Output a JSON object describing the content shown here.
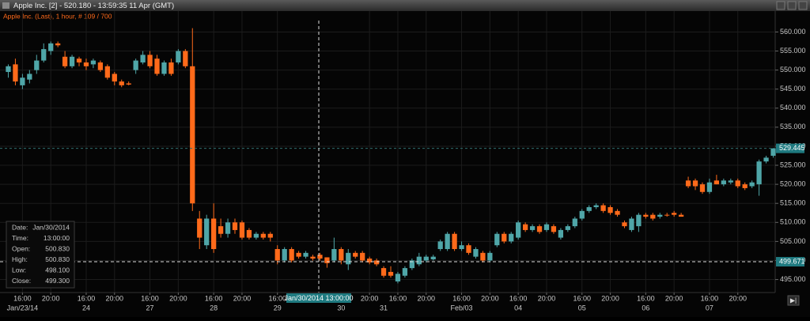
{
  "chart_data": {
    "type": "candlestick",
    "title": "Apple Inc.  [2] - 520.180 - 13:59:35  11 Apr (GMT)",
    "subtitle": "Apple Inc.  (Last), 1 hour, # 109 / 700",
    "up_color": "#4fa6a8",
    "down_color": "#ff6a1a",
    "grid": true,
    "ylim": [
      492,
      563
    ],
    "yticks": [
      {
        "value": 495,
        "label": "495.000"
      },
      {
        "value": 500,
        "label": "500.000"
      },
      {
        "value": 505,
        "label": "505.000"
      },
      {
        "value": 510,
        "label": "510.000"
      },
      {
        "value": 515,
        "label": "515.000"
      },
      {
        "value": 520,
        "label": "520.000"
      },
      {
        "value": 525,
        "label": "525.000"
      },
      {
        "value": 530,
        "label": "530.000"
      },
      {
        "value": 535,
        "label": "535.000"
      },
      {
        "value": 540,
        "label": "540.000"
      },
      {
        "value": 545,
        "label": "545.000"
      },
      {
        "value": 550,
        "label": "550.000"
      },
      {
        "value": 555,
        "label": "555.000"
      },
      {
        "value": 560,
        "label": "560.000"
      }
    ],
    "xlim": [
      -0.5,
      108.5
    ],
    "xticks": [
      {
        "value": 2,
        "label": "16:00"
      },
      {
        "value": 6,
        "label": "20:00"
      },
      {
        "value": 11,
        "label": "16:00"
      },
      {
        "value": 15,
        "label": "20:00"
      },
      {
        "value": 20,
        "label": "16:00"
      },
      {
        "value": 24,
        "label": "20:00"
      },
      {
        "value": 29,
        "label": "16:00"
      },
      {
        "value": 33,
        "label": "20:00"
      },
      {
        "value": 38,
        "label": "16:00"
      },
      {
        "value": 51,
        "label": "20:00"
      },
      {
        "value": 55,
        "label": "16:00"
      },
      {
        "value": 59,
        "label": "20:00"
      },
      {
        "value": 64,
        "label": "16:00"
      },
      {
        "value": 68,
        "label": "20:00"
      },
      {
        "value": 72,
        "label": "16:00"
      },
      {
        "value": 76,
        "label": "20:00"
      },
      {
        "value": 81,
        "label": "16:00"
      },
      {
        "value": 85,
        "label": "20:00"
      },
      {
        "value": 90,
        "label": "16:00"
      },
      {
        "value": 94,
        "label": "20:00"
      },
      {
        "value": 99,
        "label": "16:00"
      },
      {
        "value": 103,
        "label": "20:00"
      }
    ],
    "date_ticks": [
      {
        "value": 2,
        "label": "Jan/23/14"
      },
      {
        "value": 11,
        "label": "24"
      },
      {
        "value": 20,
        "label": "27"
      },
      {
        "value": 29,
        "label": "28"
      },
      {
        "value": 38,
        "label": "29"
      },
      {
        "value": 47,
        "label": "30"
      },
      {
        "value": 53,
        "label": "31"
      },
      {
        "value": 64,
        "label": "Feb/03"
      },
      {
        "value": 72,
        "label": "04"
      },
      {
        "value": 81,
        "label": "05"
      },
      {
        "value": 90,
        "label": "06"
      },
      {
        "value": 99,
        "label": "07"
      }
    ],
    "ohlc": [
      [
        549.5,
        551.5,
        548,
        551
      ],
      [
        551.5,
        553,
        546,
        547
      ],
      [
        546,
        549,
        545,
        548
      ],
      [
        547.5,
        550,
        546.5,
        549
      ],
      [
        550,
        554,
        549,
        552.5
      ],
      [
        552.5,
        557,
        552,
        555.5
      ],
      [
        555,
        557.5,
        554,
        557
      ],
      [
        557,
        557.5,
        556,
        556.5
      ],
      [
        553.5,
        555,
        550.5,
        551
      ],
      [
        551,
        554,
        550.5,
        553.5
      ],
      [
        553,
        553.5,
        551,
        552
      ],
      [
        552,
        553,
        550,
        551
      ],
      [
        551.5,
        553,
        550.5,
        552.5
      ],
      [
        552,
        552.5,
        549.5,
        550
      ],
      [
        551,
        551.5,
        547.5,
        548
      ],
      [
        549,
        549.5,
        546,
        547
      ],
      [
        547,
        547.5,
        545.5,
        546
      ],
      [
        546.5,
        547,
        546,
        546.2
      ],
      [
        550,
        553,
        549,
        552.5
      ],
      [
        552,
        555,
        551.5,
        554
      ],
      [
        554,
        555,
        550.5,
        551
      ],
      [
        553,
        554,
        548.5,
        549
      ],
      [
        549,
        552.5,
        548.5,
        552
      ],
      [
        552,
        553,
        548.5,
        549
      ],
      [
        552,
        555.5,
        551.5,
        555
      ],
      [
        555,
        555.5,
        550.5,
        551
      ],
      [
        551,
        561,
        513,
        515
      ],
      [
        511,
        513,
        503,
        506
      ],
      [
        504,
        512,
        503,
        511
      ],
      [
        511,
        515,
        502,
        503
      ],
      [
        509,
        511,
        506,
        507
      ],
      [
        507,
        511,
        506,
        510
      ],
      [
        510,
        511,
        507,
        508
      ],
      [
        510,
        510.5,
        505.5,
        506
      ],
      [
        508,
        508.5,
        505.5,
        506
      ],
      [
        506,
        507.5,
        505.5,
        507
      ],
      [
        507,
        507.5,
        505.5,
        506
      ],
      [
        507,
        507.5,
        505,
        506
      ],
      [
        503,
        504,
        499,
        500
      ],
      [
        500,
        503.5,
        499.5,
        503
      ],
      [
        503,
        503.5,
        499.5,
        500
      ],
      [
        502,
        502.5,
        500.5,
        501
      ],
      [
        501,
        502.5,
        500.5,
        502
      ],
      [
        501,
        501.5,
        500,
        500.5
      ],
      [
        501.5,
        502,
        500,
        500.5
      ],
      [
        500.83,
        500.83,
        498.1,
        499.3
      ],
      [
        500,
        506,
        499.5,
        503
      ],
      [
        503,
        503.5,
        499,
        500
      ],
      [
        499,
        503,
        497.5,
        502
      ],
      [
        502,
        502.5,
        500.5,
        501
      ],
      [
        502,
        502.5,
        499.5,
        500
      ],
      [
        500.5,
        501,
        499,
        499.5
      ],
      [
        500,
        500.5,
        498.5,
        499
      ],
      [
        498,
        498.5,
        495.5,
        496
      ],
      [
        497,
        498.5,
        495.5,
        496
      ],
      [
        494.5,
        497,
        494,
        496.5
      ],
      [
        496,
        498.5,
        495.5,
        498
      ],
      [
        498,
        500.5,
        497.5,
        500
      ],
      [
        499,
        502,
        498.5,
        501
      ],
      [
        500,
        501.5,
        499.5,
        501
      ],
      [
        500.3,
        501.5,
        500,
        501
      ],
      [
        503,
        505.5,
        502.5,
        505
      ],
      [
        503,
        507.5,
        502.5,
        507
      ],
      [
        507,
        507.5,
        502.5,
        503
      ],
      [
        503,
        505,
        502.5,
        504
      ],
      [
        504,
        504.5,
        501.5,
        502
      ],
      [
        501,
        503.5,
        500.5,
        503
      ],
      [
        502,
        502.5,
        499.5,
        500
      ],
      [
        500,
        502.5,
        499.5,
        502
      ],
      [
        504,
        507.5,
        503.5,
        507
      ],
      [
        507,
        507.5,
        504.5,
        505
      ],
      [
        505,
        507.5,
        504.5,
        507
      ],
      [
        506,
        510.5,
        505.5,
        510
      ],
      [
        509.5,
        510,
        507.5,
        508
      ],
      [
        508,
        509.5,
        507.5,
        509
      ],
      [
        509,
        509.5,
        507,
        507.5
      ],
      [
        508,
        510,
        507.5,
        509.5
      ],
      [
        509,
        509.5,
        507,
        507.5
      ],
      [
        506,
        508.5,
        505.5,
        508
      ],
      [
        508,
        509.5,
        507.5,
        509
      ],
      [
        509,
        511.5,
        508.5,
        511
      ],
      [
        511,
        513.5,
        510.5,
        513
      ],
      [
        513,
        514.5,
        512.5,
        514
      ],
      [
        514,
        515,
        513.5,
        514.5
      ],
      [
        514.5,
        515,
        512.5,
        513
      ],
      [
        514,
        514.5,
        512,
        512.5
      ],
      [
        513,
        513.5,
        511.5,
        512
      ],
      [
        510,
        510.5,
        508.5,
        509
      ],
      [
        508,
        511.5,
        507.5,
        511
      ],
      [
        509,
        512.5,
        507.5,
        512
      ],
      [
        512,
        512.5,
        511,
        511.5
      ],
      [
        512,
        512.5,
        510.5,
        511
      ],
      [
        511.5,
        512.5,
        511,
        512
      ],
      [
        512,
        512.5,
        511.5,
        511.8
      ],
      [
        512.5,
        513,
        511.5,
        512
      ],
      [
        512,
        512.5,
        511.5,
        511.5
      ],
      [
        521,
        522,
        519,
        519.5
      ],
      [
        521,
        521.5,
        518.5,
        519.5
      ],
      [
        520,
        520.5,
        517.5,
        518
      ],
      [
        518,
        521.5,
        517.5,
        520.5
      ],
      [
        521,
        522.5,
        520,
        520
      ],
      [
        520,
        521.5,
        519.5,
        521
      ],
      [
        520.5,
        521.5,
        520,
        521
      ],
      [
        521,
        521.5,
        519,
        519.5
      ],
      [
        520,
        520.5,
        518.5,
        519
      ],
      [
        519.5,
        521,
        519,
        520.5
      ],
      [
        520,
        526.5,
        517,
        526
      ],
      [
        526,
        527.5,
        525.5,
        527
      ],
      [
        527.5,
        529.5,
        527,
        529.445
      ]
    ],
    "last_price": {
      "value": 529.445,
      "label": "529.445"
    },
    "crosshair": {
      "time": "Jan/30/2014 13:00:00",
      "price": {
        "value": 499.671,
        "label": "499.671"
      }
    },
    "info": [
      {
        "label": "Date:",
        "value": "Jan/30/2014"
      },
      {
        "label": "Time:",
        "value": "13:00:00"
      },
      {
        "label": "Open:",
        "value": "500.830"
      },
      {
        "label": "High:",
        "value": "500.830"
      },
      {
        "label": "Low:",
        "value": "498.100"
      },
      {
        "label": "Close:",
        "value": "499.300"
      }
    ]
  }
}
